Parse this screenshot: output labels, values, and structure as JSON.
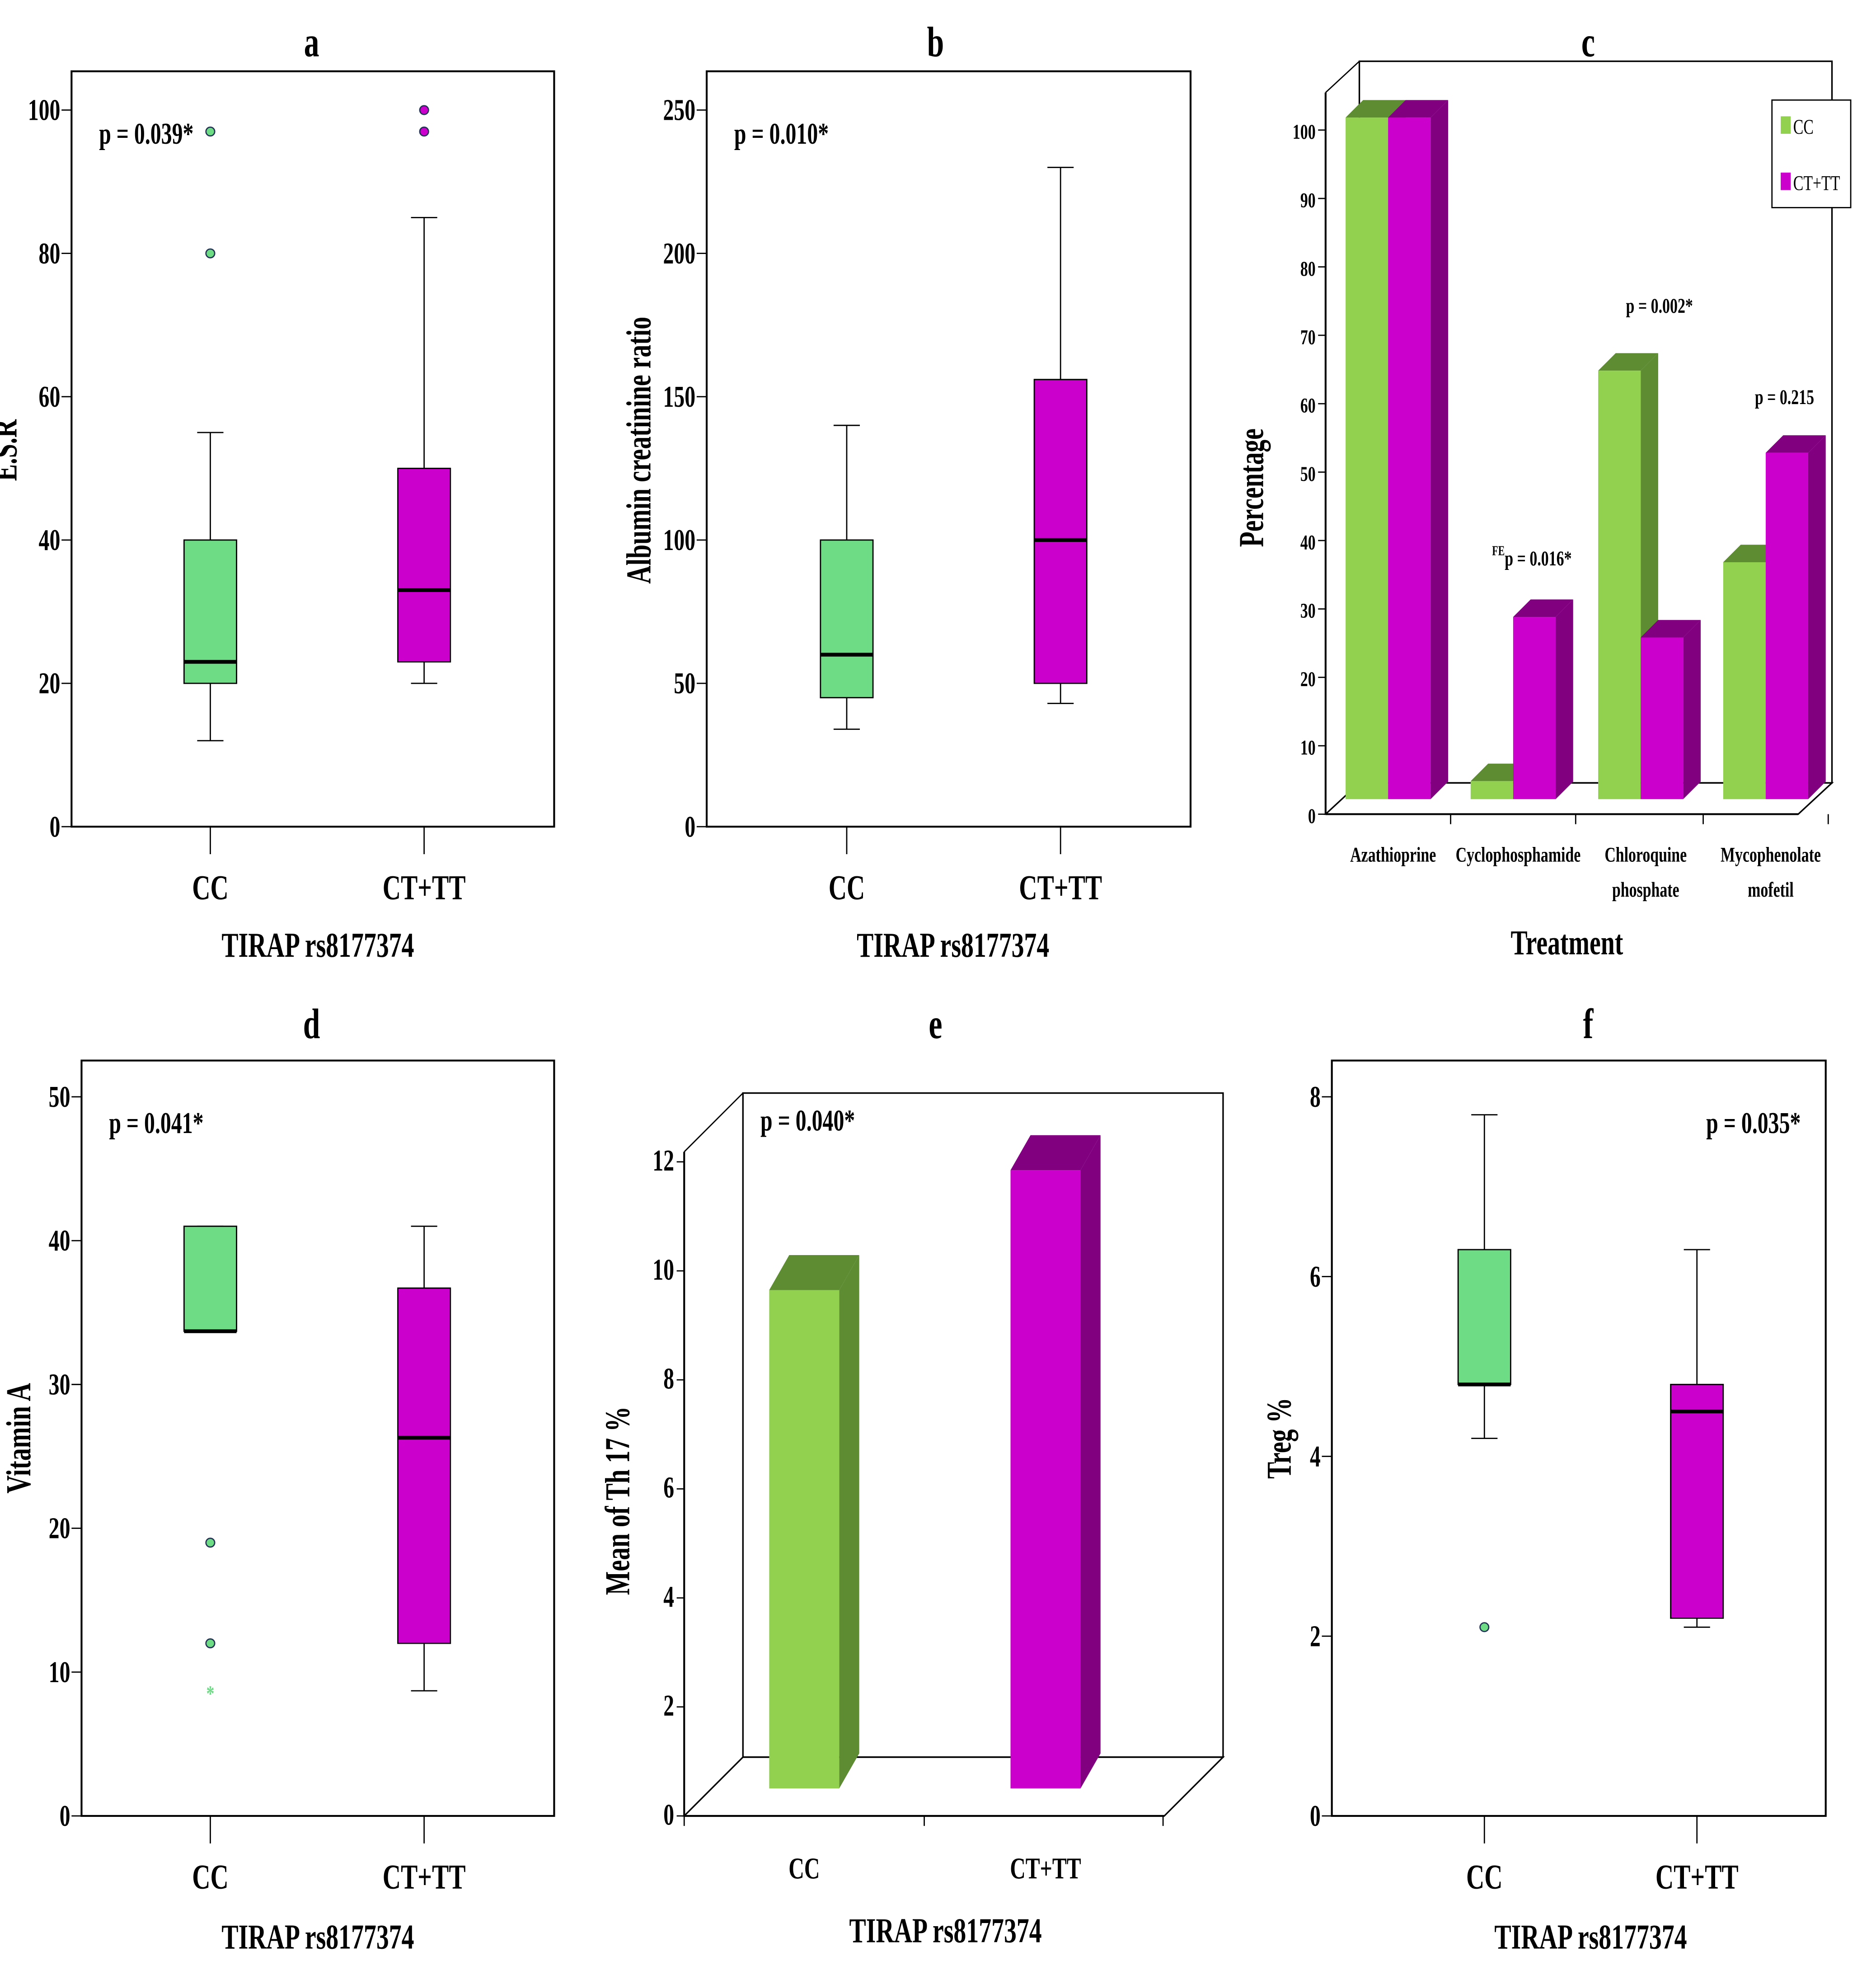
{
  "colors": {
    "cc": "#6edb85",
    "ctt": "#cc00cc",
    "cc_bar": "#92d050",
    "cc_bar_dark": "#5e8c33",
    "ctt_bar_dark": "#800080"
  },
  "chart_data": [
    {
      "id": "a",
      "type": "box",
      "title": "a",
      "xlabel": "TIRAP rs8177374",
      "ylabel": "E.S.R",
      "ylim": [
        0,
        100
      ],
      "yticks": [
        0,
        20,
        40,
        60,
        80,
        100
      ],
      "annotation": "p = 0.039*",
      "annotation_pos": "top-left",
      "categories": [
        "CC",
        "CT+TT"
      ],
      "boxes": [
        {
          "min": 12,
          "q1": 20,
          "median": 23,
          "q3": 40,
          "max": 55,
          "outliers": [
            80,
            97
          ]
        },
        {
          "min": 20,
          "q1": 23,
          "median": 33,
          "q3": 50,
          "max": 85,
          "outliers": [
            97,
            100
          ]
        }
      ]
    },
    {
      "id": "b",
      "type": "box",
      "title": "b",
      "xlabel": "TIRAP rs8177374",
      "ylabel": "Albumin creatinine ratio",
      "ylim": [
        0,
        250
      ],
      "yticks": [
        0,
        50,
        100,
        150,
        200,
        250
      ],
      "annotation": "p = 0.010*",
      "annotation_pos": "top-left",
      "categories": [
        "CC",
        "CT+TT"
      ],
      "boxes": [
        {
          "min": 34,
          "q1": 45,
          "median": 60,
          "q3": 100,
          "max": 140,
          "outliers": []
        },
        {
          "min": 43,
          "q1": 50,
          "median": 100,
          "q3": 156,
          "max": 230,
          "outliers": []
        }
      ]
    },
    {
      "id": "c",
      "type": "bar",
      "title": "c",
      "xlabel": "Treatment",
      "ylabel": "Percentage",
      "ylim": [
        0,
        100
      ],
      "yticks": [
        0,
        10,
        20,
        30,
        40,
        50,
        60,
        70,
        80,
        90,
        100
      ],
      "categories": [
        "Azathioprine",
        "Cyclophosphamide",
        "Chloroquine phosphate",
        "Mycophenolate mofetil"
      ],
      "category_lines": [
        [
          "Azathioprine"
        ],
        [
          "Cyclophosphamide"
        ],
        [
          "Chloroquine",
          "phosphate"
        ],
        [
          "Mycophenolate",
          "mofetil"
        ]
      ],
      "series": [
        {
          "name": "CC",
          "values": [
            100,
            3,
            63,
            35
          ]
        },
        {
          "name": "CT+TT",
          "values": [
            100,
            27,
            24,
            51
          ]
        }
      ],
      "legend": "top-right",
      "annotations": [
        {
          "category": "Cyclophosphamide",
          "sup": "FE",
          "text": "p = 0.016*"
        },
        {
          "category": "Chloroquine phosphate",
          "text": "p = 0.002*"
        },
        {
          "category": "Mycophenolate mofetil",
          "text": "p = 0.215"
        }
      ]
    },
    {
      "id": "d",
      "type": "box",
      "title": "d",
      "xlabel": "TIRAP rs8177374",
      "ylabel": "Vitamin A",
      "ylim": [
        0,
        50
      ],
      "yticks": [
        0,
        10,
        20,
        30,
        40,
        50
      ],
      "annotation": "p = 0.041*",
      "annotation_pos": "top-left",
      "categories": [
        "CC",
        "CT+TT"
      ],
      "boxes": [
        {
          "min": 33.7,
          "q1": 33.7,
          "median": 33.7,
          "q3": 41,
          "max": 41,
          "outliers": [
            19,
            12
          ],
          "extremes": [
            8.7
          ]
        },
        {
          "min": 8.7,
          "q1": 12,
          "median": 26.3,
          "q3": 36.7,
          "max": 41,
          "outliers": []
        }
      ]
    },
    {
      "id": "e",
      "type": "bar",
      "title": "e",
      "xlabel": "TIRAP rs8177374",
      "ylabel": "Mean of Th 17 %",
      "ylim": [
        0,
        12
      ],
      "yticks": [
        0,
        2,
        4,
        6,
        8,
        10,
        12
      ],
      "annotation": "p = 0.040*",
      "categories": [
        "CC",
        "CT+TT"
      ],
      "values": [
        9,
        11.2
      ]
    },
    {
      "id": "f",
      "type": "box",
      "title": "f",
      "xlabel": "TIRAP rs8177374",
      "ylabel": "Treg %",
      "ylim": [
        0,
        8
      ],
      "yticks": [
        0,
        2,
        4,
        6,
        8
      ],
      "annotation": "p = 0.035*",
      "annotation_pos": "top-right",
      "categories": [
        "CC",
        "CT+TT"
      ],
      "boxes": [
        {
          "min": 4.2,
          "q1": 4.8,
          "median": 4.8,
          "q3": 6.3,
          "max": 7.8,
          "outliers": [
            2.1
          ]
        },
        {
          "min": 2.1,
          "q1": 2.2,
          "median": 4.5,
          "q3": 4.8,
          "max": 6.3,
          "outliers": []
        }
      ]
    }
  ]
}
